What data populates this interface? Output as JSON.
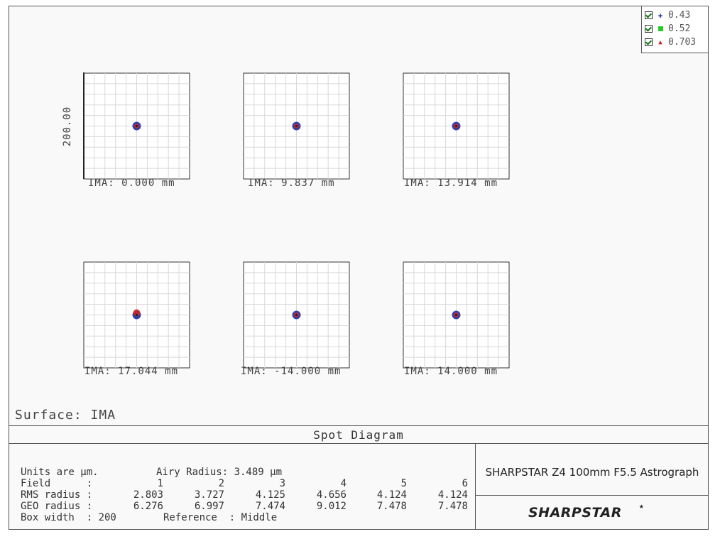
{
  "chart_data": {
    "type": "scatter",
    "title": "Spot Diagram",
    "surface": "Surface: IMA",
    "ylabel": "200.00",
    "box_width": 200,
    "legend": [
      {
        "label": "0.43",
        "marker": "plus",
        "color": "#1f2fa8"
      },
      {
        "label": "0.52",
        "marker": "square",
        "color": "#22cc22"
      },
      {
        "label": "0.703",
        "marker": "triangle",
        "color": "#cc2222"
      }
    ],
    "fields": [
      {
        "label": "IMA: 0.000 mm",
        "centroid": [
          0,
          0
        ]
      },
      {
        "label": "IMA: 9.837 mm",
        "centroid": [
          0,
          0
        ]
      },
      {
        "label": "IMA: 13.914 mm",
        "centroid": [
          0,
          0
        ]
      },
      {
        "label": "IMA: 17.044 mm",
        "centroid": [
          0,
          0
        ]
      },
      {
        "label": "IMA: -14.000 mm",
        "centroid": [
          0,
          0
        ]
      },
      {
        "label": "IMA: 14.000 mm",
        "centroid": [
          0,
          0
        ]
      }
    ],
    "table": {
      "units": "Units are µm.",
      "airy": "Airy Radius: 3.489 µm",
      "field_label": "Field      :",
      "field_numbers": [
        "1",
        "2",
        "3",
        "4",
        "5",
        "6"
      ],
      "rms_label": "RMS radius :",
      "rms": [
        "2.803",
        "3.727",
        "4.125",
        "4.656",
        "4.124",
        "4.124"
      ],
      "geo_label": "GEO radius :",
      "geo": [
        "6.276",
        "6.997",
        "7.474",
        "9.012",
        "7.478",
        "7.478"
      ],
      "box_width_text": "Box width  : 200",
      "reference_text": "Reference  : Middle"
    }
  },
  "lens_title": "SHARPSTAR Z4 100mm F5.5 Astrograph",
  "logo": "SHARPSTAR"
}
